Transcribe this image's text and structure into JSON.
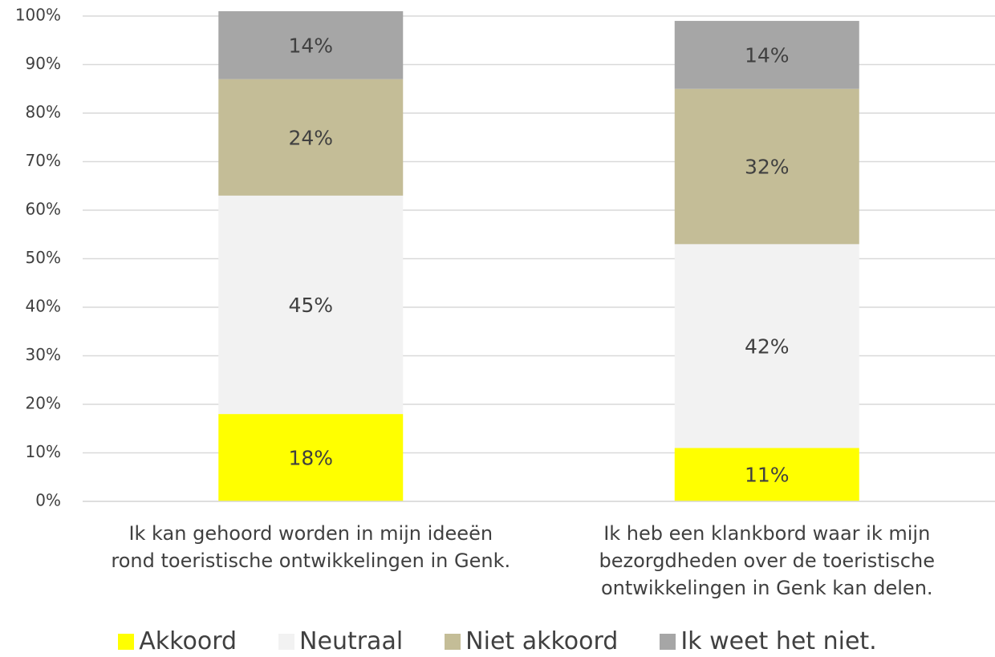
{
  "chart_data": {
    "type": "stacked_bar",
    "categories": [
      "Ik kan gehoord worden in mijn ideeën\nrond toeristische ontwikkelingen in Genk.",
      "Ik heb een klankbord waar ik mijn\nbezorgdheden over de toeristische\nontwikkelingen in Genk kan delen."
    ],
    "series": [
      {
        "name": "Akkoord",
        "color": "#ffff00",
        "values": [
          18,
          11
        ],
        "value_labels": [
          "18%",
          "11%"
        ]
      },
      {
        "name": "Neutraal",
        "color": "#f2f2f2",
        "values": [
          45,
          42
        ],
        "value_labels": [
          "45%",
          "42%"
        ]
      },
      {
        "name": "Niet akkoord",
        "color": "#c4bd97",
        "values": [
          24,
          32
        ],
        "value_labels": [
          "24%",
          "32%"
        ]
      },
      {
        "name": "Ik weet het niet.",
        "color": "#a6a6a6",
        "values": [
          14,
          14
        ],
        "value_labels": [
          "14%",
          "14%"
        ]
      }
    ],
    "ylim": [
      0,
      100
    ],
    "yticks": [
      {
        "value": 0,
        "label": "0%"
      },
      {
        "value": 10,
        "label": "10%"
      },
      {
        "value": 20,
        "label": "20%"
      },
      {
        "value": 30,
        "label": "30%"
      },
      {
        "value": 40,
        "label": "40%"
      },
      {
        "value": 50,
        "label": "50%"
      },
      {
        "value": 60,
        "label": "60%"
      },
      {
        "value": 70,
        "label": "70%"
      },
      {
        "value": 80,
        "label": "80%"
      },
      {
        "value": 90,
        "label": "90%"
      },
      {
        "value": 100,
        "label": "100%"
      }
    ],
    "grid": true,
    "legend": "bottom"
  }
}
